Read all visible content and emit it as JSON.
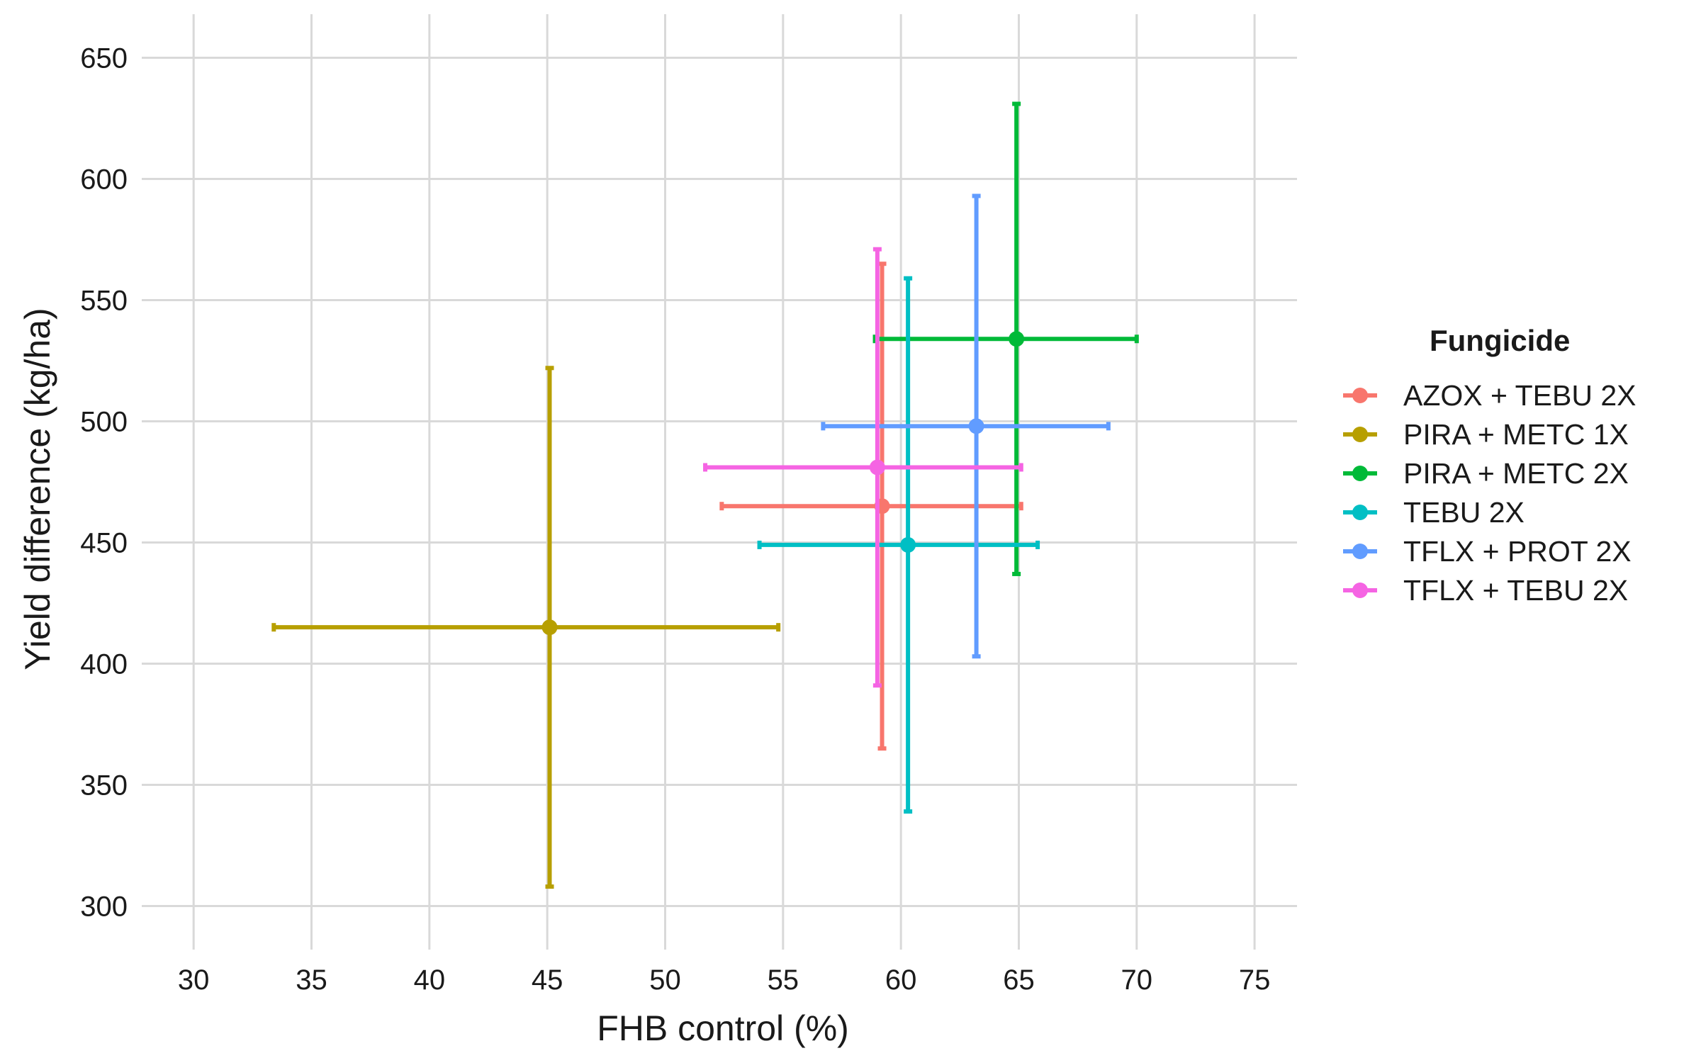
{
  "chart_data": {
    "type": "scatter",
    "xlabel": "FHB control (%)",
    "ylabel": "Yield difference (kg/ha)",
    "xlim": [
      27.8,
      76.8
    ],
    "ylim": [
      282,
      668
    ],
    "x_ticks": [
      30,
      35,
      40,
      45,
      50,
      55,
      60,
      65,
      70,
      75
    ],
    "y_ticks": [
      300,
      350,
      400,
      450,
      500,
      550,
      600,
      650
    ],
    "grid": true,
    "legend": {
      "title": "Fungicide",
      "position": "right"
    },
    "series": [
      {
        "name": "AZOX + TEBU 2X",
        "color": "#F8766D",
        "x": 59.2,
        "y": 465,
        "x_err": [
          52.4,
          65.1
        ],
        "y_err": [
          365,
          565
        ]
      },
      {
        "name": "PIRA + METC 1X",
        "color": "#B79F00",
        "x": 45.1,
        "y": 415,
        "x_err": [
          33.4,
          54.8
        ],
        "y_err": [
          308,
          522
        ]
      },
      {
        "name": "PIRA + METC 2X",
        "color": "#00BA38",
        "x": 64.9,
        "y": 534,
        "x_err": [
          58.9,
          70.0
        ],
        "y_err": [
          437,
          631
        ]
      },
      {
        "name": "TEBU 2X",
        "color": "#00BFC4",
        "x": 60.3,
        "y": 449,
        "x_err": [
          54.0,
          65.8
        ],
        "y_err": [
          339,
          559
        ]
      },
      {
        "name": "TFLX + PROT 2X",
        "color": "#619CFF",
        "x": 63.2,
        "y": 498,
        "x_err": [
          56.7,
          68.8
        ],
        "y_err": [
          403,
          593
        ]
      },
      {
        "name": "TFLX + TEBU 2X",
        "color": "#F564E3",
        "x": 59.0,
        "y": 481,
        "x_err": [
          51.7,
          65.1
        ],
        "y_err": [
          391,
          571
        ]
      }
    ]
  }
}
